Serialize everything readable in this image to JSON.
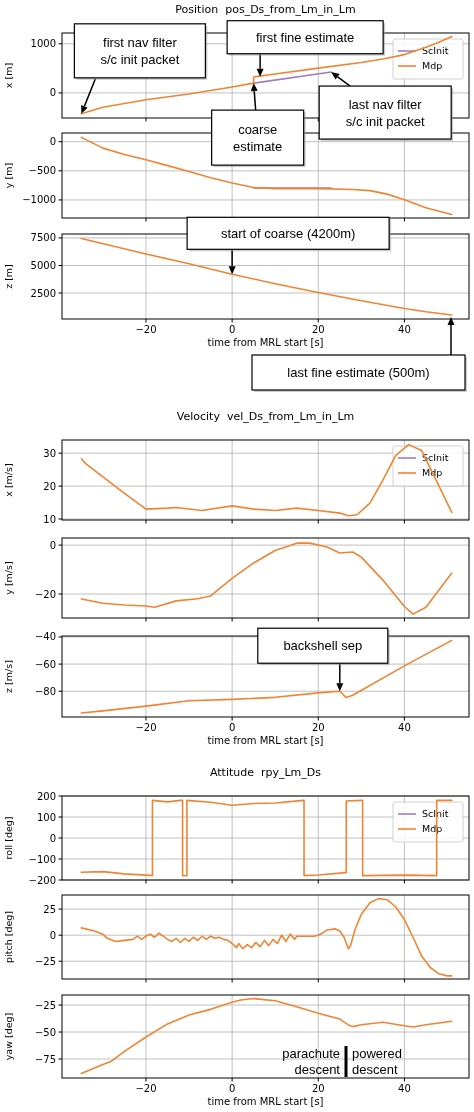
{
  "chart_data": [
    {
      "type": "line",
      "title": "Position  pos_Ds_from_Lm_in_Lm",
      "ylabel": "x [m]",
      "xlim": [
        -39.5,
        55
      ],
      "ylim": [
        -510,
        1220
      ],
      "xticks": [
        -20,
        0,
        20,
        40
      ],
      "yticks": [
        0,
        1000
      ],
      "tick_labels": "y",
      "grid": true,
      "legend": "top right",
      "line_style": "solid",
      "series": [
        {
          "name": "ScInit",
          "color": "#9f7bc0",
          "x": [
            5,
            23
          ],
          "values": [
            200,
            425
          ]
        },
        {
          "name": "Mdp",
          "color": "#ee8533",
          "x": [
            -35,
            -30,
            -25,
            -20,
            -10,
            0,
            5,
            5,
            10,
            20,
            30,
            35,
            40,
            45,
            48,
            51
          ],
          "values": [
            -425,
            -290,
            -215,
            -140,
            -20,
            120,
            200,
            325,
            385,
            505,
            620,
            690,
            780,
            930,
            1030,
            1150
          ]
        }
      ],
      "annotations": [
        {
          "text": "first nav filter s/c init packet",
          "x": -35,
          "y": -425
        },
        {
          "text": "first fine estimate",
          "x": 6.5,
          "y": 330
        },
        {
          "text": "coarse estimate",
          "x": 5,
          "y": 200
        },
        {
          "text": "last nav filter s/c init packet",
          "x": 23,
          "y": 425
        }
      ]
    },
    {
      "type": "line",
      "ylabel": "y [m]",
      "xlim": [
        -39.5,
        55
      ],
      "ylim": [
        -1310,
        150
      ],
      "xticks": [
        -20,
        0,
        20,
        40
      ],
      "yticks": [
        {
          "value": -1000,
          "label": "−1000"
        },
        {
          "value": -500,
          "label": "−500"
        },
        0
      ],
      "tick_labels": "y",
      "grid": true,
      "series": [
        {
          "color": "#9f7bc0",
          "x": [
            5,
            23
          ],
          "values": [
            -795,
            -795
          ]
        },
        {
          "color": "#ee8533",
          "x": [
            -35,
            -30,
            -25,
            -20,
            -15,
            -10,
            -5,
            0,
            5,
            10,
            20,
            28,
            32,
            36,
            40,
            45,
            51
          ],
          "values": [
            75,
            -110,
            -220,
            -310,
            -410,
            -510,
            -620,
            -710,
            -785,
            -805,
            -805,
            -820,
            -840,
            -900,
            -995,
            -1135,
            -1250
          ]
        }
      ]
    },
    {
      "type": "line",
      "ylabel": "z [m]",
      "xlabel": "time from MRL start [s]",
      "xlim": [
        -39.5,
        55
      ],
      "ylim": [
        140,
        7860
      ],
      "xticks": [
        -20,
        0,
        20,
        40
      ],
      "yticks": [
        2500,
        5000,
        7500
      ],
      "grid": true,
      "series": [
        {
          "color": "#ee8533",
          "x": [
            -35,
            -20,
            -10,
            0,
            10,
            20,
            30,
            40,
            45,
            51
          ],
          "values": [
            7450,
            6050,
            5150,
            4200,
            3350,
            2550,
            1800,
            1100,
            800,
            500
          ]
        }
      ],
      "annotations": [
        {
          "text": "start of coarse (4200m)",
          "x": 0,
          "y": 4200
        },
        "last fine estimate (500m)"
      ]
    },
    {
      "type": "line",
      "title": "Velocity  vel_Ds_from_Lm_in_Lm",
      "ylabel": "x [m/s]",
      "xlim": [
        -39.5,
        55
      ],
      "ylim": [
        9.7,
        34
      ],
      "xticks": [
        -20,
        0,
        20,
        40
      ],
      "yticks": [
        10,
        20,
        30
      ],
      "tick_labels": "y",
      "grid": true,
      "legend": "top right",
      "series": [
        {
          "name": "ScInit",
          "color": "#9f7bc0"
        },
        {
          "name": "Mdp",
          "color": "#ee8533",
          "x": [
            -35,
            -34,
            -30,
            -25,
            -20,
            -15,
            -13,
            -7,
            0,
            5,
            10,
            15,
            20,
            25,
            27,
            29,
            32,
            35,
            38,
            41,
            44,
            47,
            51
          ],
          "values": [
            28.3,
            26.8,
            22.8,
            17.8,
            13,
            13.3,
            13.5,
            12.6,
            14,
            13,
            12.6,
            13.3,
            12.6,
            11.8,
            11,
            11.3,
            14.8,
            21.8,
            29.3,
            32.6,
            30.8,
            22.8,
            12
          ]
        }
      ]
    },
    {
      "type": "line",
      "ylabel": "y [m/s]",
      "xlim": [
        -39.5,
        55
      ],
      "ylim": [
        -29.8,
        2.9
      ],
      "xticks": [
        -20,
        0,
        20,
        40
      ],
      "yticks": [
        {
          "value": -20,
          "label": "−20"
        },
        0
      ],
      "tick_labels": "y",
      "grid": true,
      "series": [
        {
          "color": "#ee8533",
          "x": [
            -35,
            -30,
            -25,
            -20,
            -18,
            -13,
            -8,
            -5,
            0,
            5,
            10,
            15,
            18,
            22,
            25,
            28,
            30,
            35,
            40,
            42,
            45,
            51
          ],
          "values": [
            -22,
            -23.8,
            -24.5,
            -24.9,
            -25.4,
            -22.8,
            -21.9,
            -20.8,
            -13.6,
            -7.3,
            -2.2,
            0.8,
            0.8,
            -0.8,
            -3.2,
            -2.8,
            -4.9,
            -14.3,
            -25.1,
            -28.2,
            -25.4,
            -11.4
          ]
        }
      ]
    },
    {
      "type": "line",
      "ylabel": "z [m/s]",
      "xlabel": "time from MRL start [s]",
      "xlim": [
        -39.5,
        55
      ],
      "ylim": [
        -99,
        -39.3
      ],
      "xticks": [
        -20,
        0,
        20,
        40
      ],
      "yticks": [
        {
          "value": -80,
          "label": "−80"
        },
        {
          "value": -60,
          "label": "−60"
        },
        {
          "value": -40,
          "label": "−40"
        }
      ],
      "grid": true,
      "series": [
        {
          "color": "#ee8533",
          "x": [
            -35,
            -30,
            -20,
            -10,
            0,
            10,
            20,
            25,
            26.5,
            28,
            40,
            51
          ],
          "values": [
            -96,
            -94.5,
            -91,
            -87,
            -86,
            -84.5,
            -81.2,
            -80,
            -84.7,
            -83,
            -61.3,
            -42.5
          ]
        }
      ],
      "annotations": [
        {
          "text": "backshell sep",
          "x": 25,
          "y": -80
        }
      ]
    },
    {
      "type": "line",
      "title": "Attitude  rpy_Lm_Ds",
      "ylabel": "roll [deg]",
      "xlim": [
        -39.5,
        55
      ],
      "ylim": [
        -200,
        200
      ],
      "xticks": [
        -20,
        0,
        20,
        40
      ],
      "yticks": [
        {
          "value": -200,
          "label": "−200"
        },
        {
          "value": -100,
          "label": "−100"
        },
        0,
        100,
        200
      ],
      "tick_labels": "y",
      "grid": true,
      "legend": "top right",
      "series": [
        {
          "name": "ScInit",
          "color": "#9f7bc0"
        },
        {
          "name": "Mdp",
          "color": "#ee8533",
          "x": [
            -35,
            -30,
            -25,
            -19,
            -18.5,
            -18.5,
            -15,
            -12,
            -11.5,
            -11.5,
            -10.5,
            -10.5,
            -5,
            0,
            5,
            10,
            16.5,
            16.7,
            16.7,
            20,
            26.3,
            26.5,
            26.5,
            30,
            30.3,
            30.3,
            40,
            47.5,
            47.5,
            51
          ],
          "values": [
            -163,
            -160,
            -171,
            -178,
            -178,
            179,
            172,
            179,
            179,
            -180,
            -180,
            179,
            170,
            156,
            164,
            167,
            179,
            179,
            -179,
            -176,
            -165,
            -165,
            176,
            179,
            179,
            -179,
            -177,
            -179,
            179,
            179
          ]
        }
      ]
    },
    {
      "type": "line",
      "ylabel": "pitch [deg]",
      "xlim": [
        -39.5,
        55
      ],
      "ylim": [
        -42,
        38.5
      ],
      "xticks": [
        -20,
        0,
        20,
        40
      ],
      "yticks": [
        {
          "value": -25,
          "label": "−25"
        },
        0,
        25
      ],
      "tick_labels": "y",
      "grid": true,
      "series": [
        {
          "color": "#ee8533",
          "x": [
            -35,
            -32,
            -30,
            -29,
            -27,
            -25,
            -23,
            -22,
            -21,
            -20,
            -19,
            -18,
            -17,
            -16,
            -15,
            -14,
            -13,
            -12,
            -11,
            -10,
            -9,
            -8,
            -7,
            -6,
            -5,
            -4,
            -3,
            -2,
            -1,
            0,
            1,
            1.5,
            2.5,
            3.5,
            4.5,
            5.5,
            6.5,
            7.5,
            8.5,
            9.5,
            10.5,
            11.5,
            12.5,
            13.5,
            14.5,
            15,
            17,
            19,
            20,
            21,
            22,
            24,
            25,
            26,
            27,
            27.5,
            28.5,
            30,
            32,
            34,
            36,
            38,
            40,
            42,
            44,
            46,
            48,
            50,
            51
          ],
          "values": [
            7,
            4,
            1,
            -3,
            -6,
            -5,
            -4,
            -1,
            -4,
            -1,
            1,
            -2,
            2,
            -1,
            -4,
            -6,
            -3,
            -7,
            -3,
            -6,
            -2,
            -5,
            -1,
            -4,
            -1,
            -3,
            -2,
            -4,
            -5,
            -8,
            -12,
            -8,
            -13,
            -9,
            -12,
            -7,
            -11,
            -5,
            -10,
            -4,
            -8,
            0,
            -6,
            1,
            -4,
            -1,
            -1,
            -1,
            0,
            2,
            5,
            6,
            4,
            -2,
            -13,
            -10,
            5,
            20,
            31,
            35,
            34,
            27,
            15,
            -2,
            -20,
            -31,
            -37,
            -39,
            -39
          ]
        }
      ]
    },
    {
      "type": "line",
      "ylabel": "yaw [deg]",
      "xlabel": "time from MRL start [s]",
      "xlim": [
        -39.5,
        55
      ],
      "ylim": [
        -92.6,
        -15.7
      ],
      "xticks": [
        -20,
        0,
        20,
        40
      ],
      "yticks": [
        {
          "value": -75,
          "label": "−75"
        },
        {
          "value": -50,
          "label": "−50"
        },
        {
          "value": -25,
          "label": "−25"
        }
      ],
      "grid": true,
      "series": [
        {
          "color": "#ee8533",
          "x": [
            -35,
            -30,
            -28,
            -25,
            -20,
            -15,
            -10,
            -5,
            0,
            2,
            5,
            10,
            15,
            20,
            25,
            27,
            28,
            30,
            35,
            40,
            42,
            45,
            51
          ],
          "values": [
            -88.4,
            -80,
            -77,
            -68,
            -54.6,
            -42.5,
            -34.2,
            -29,
            -22.5,
            -20.4,
            -19,
            -21,
            -26.5,
            -32.7,
            -38,
            -43.4,
            -45,
            -43.3,
            -41,
            -44.2,
            -45.4,
            -43.3,
            -40
          ]
        }
      ],
      "annotations": [
        "parachute descent",
        "powered descent"
      ]
    }
  ]
}
